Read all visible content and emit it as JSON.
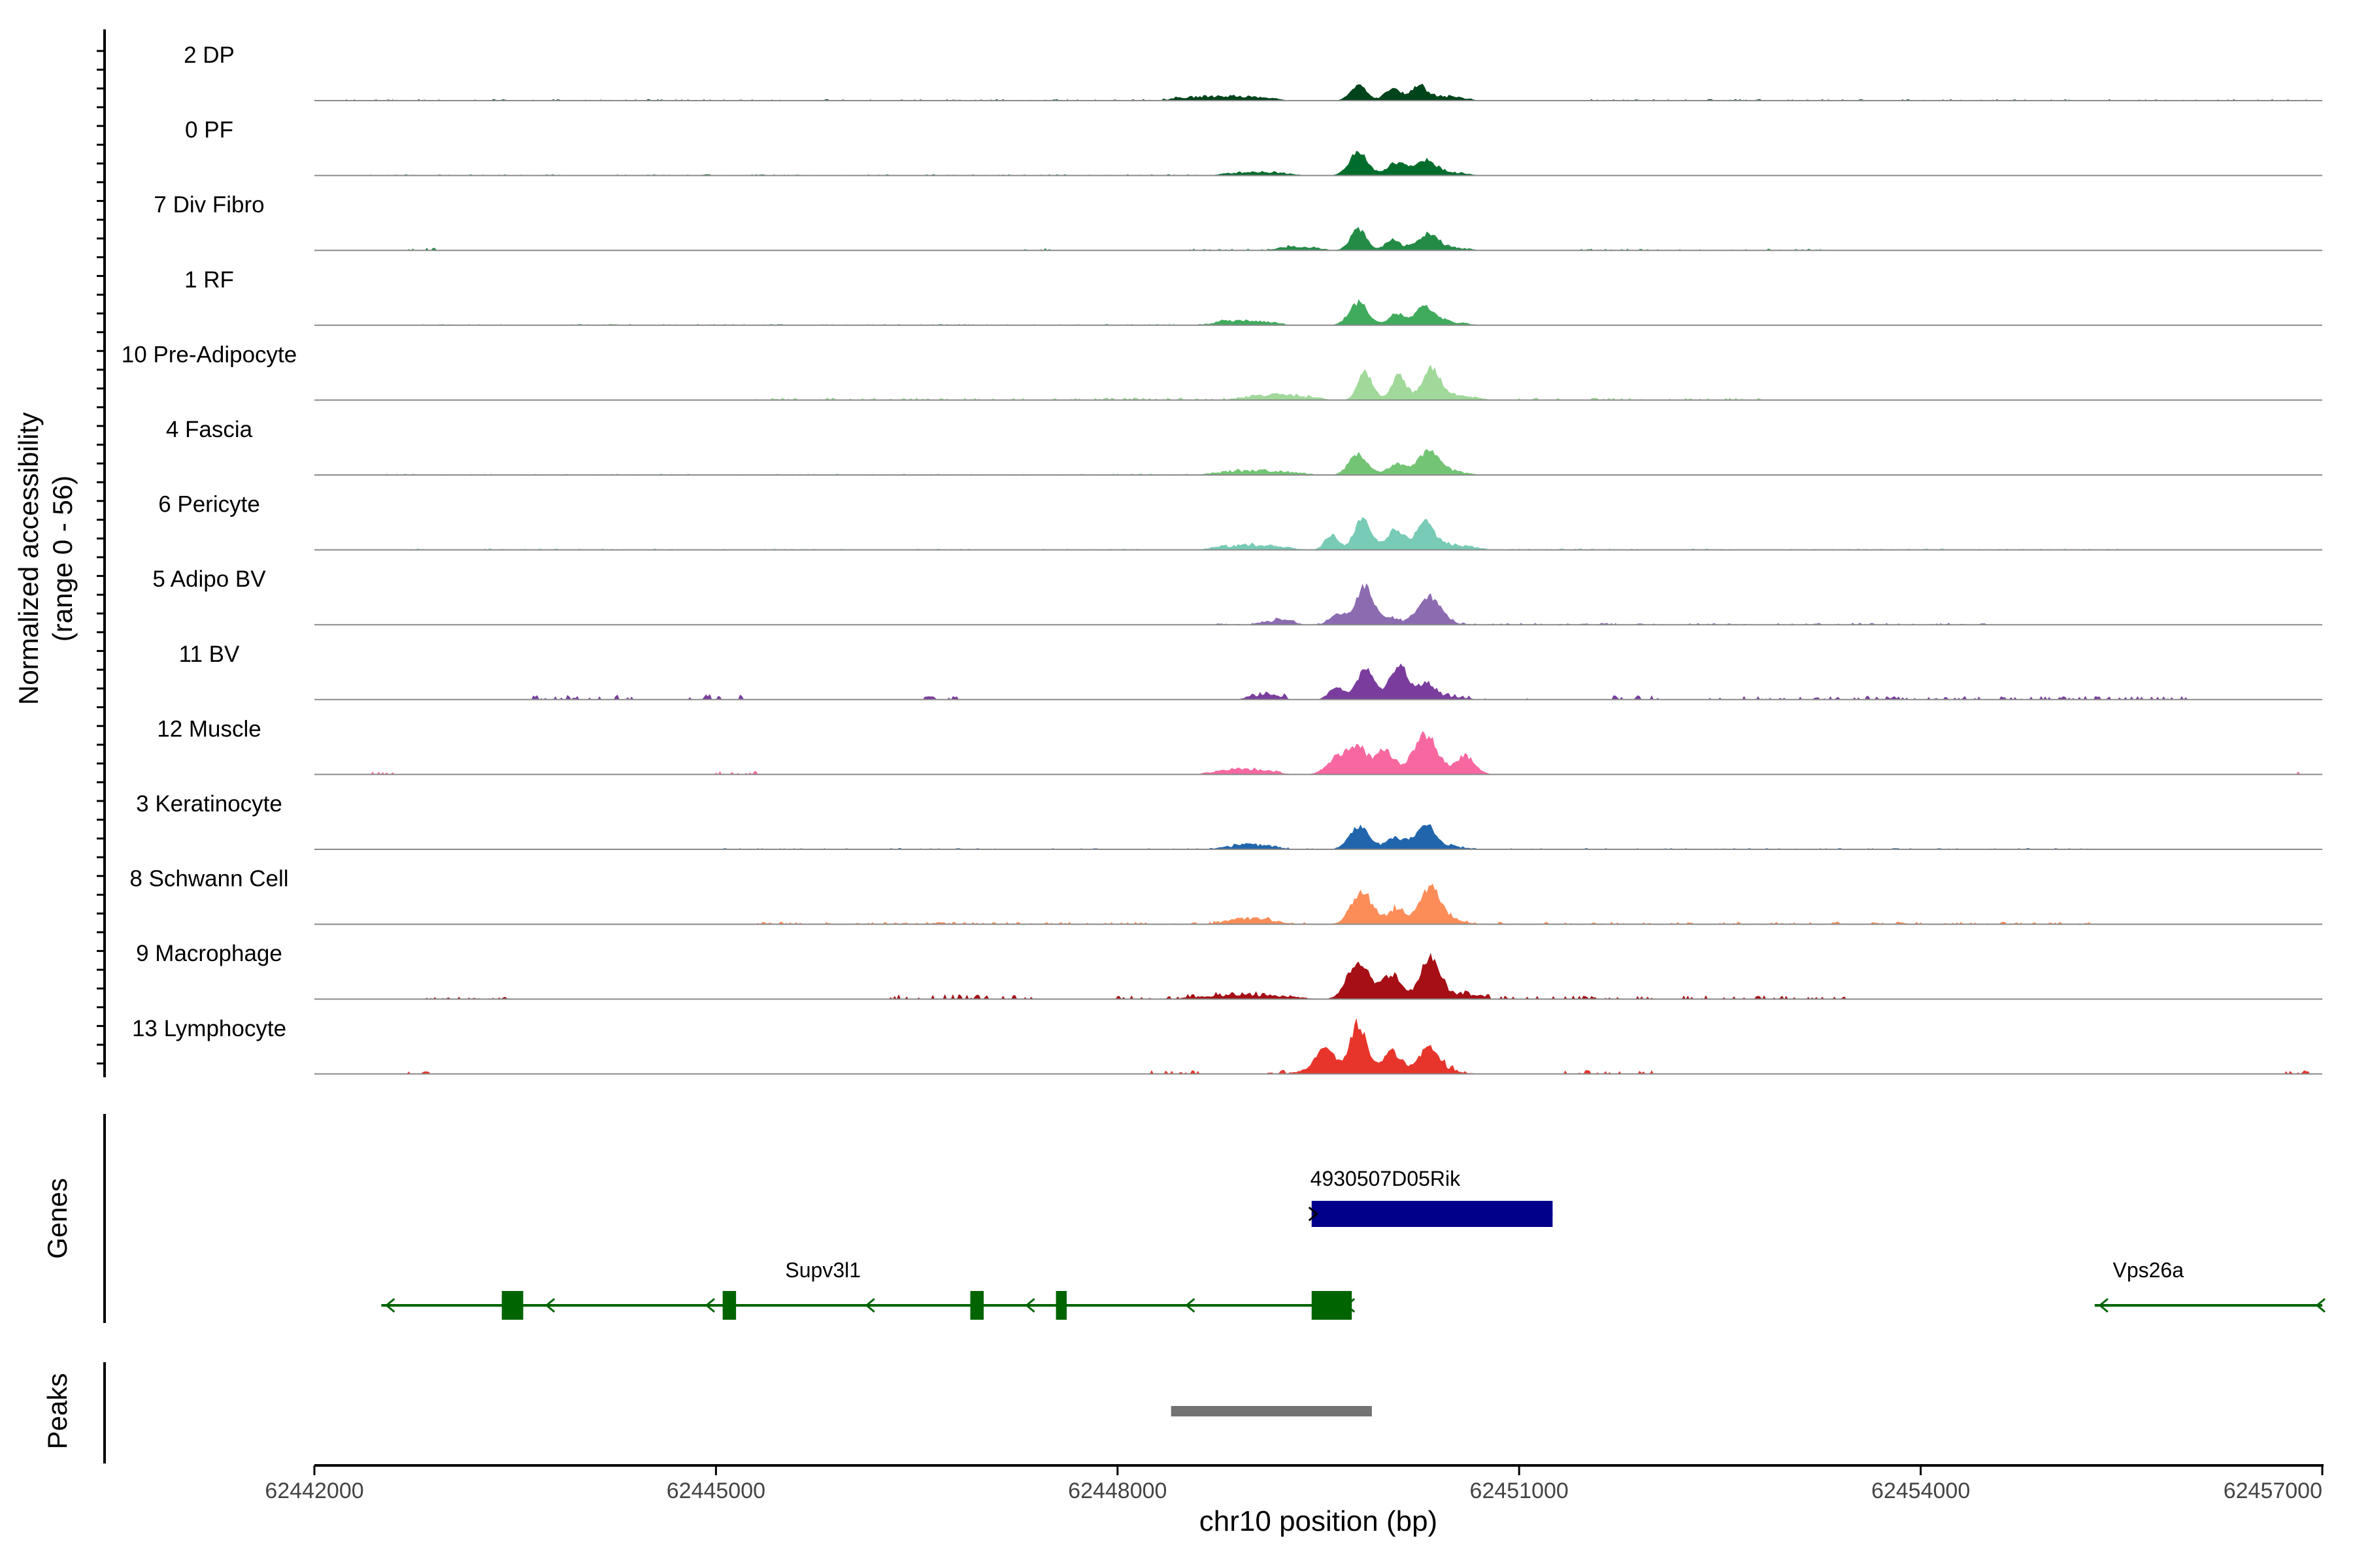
{
  "chart_data": {
    "type": "area",
    "subtype": "genome-coverage-plot",
    "chromosome": "chr10",
    "xlim": [
      62442000,
      62457000
    ],
    "xlabel": "chr10 position (bp)",
    "x_ticks": [
      62442000,
      62445000,
      62448000,
      62451000,
      62454000,
      62457000
    ],
    "x_tick_labels": [
      "62442000",
      "62445000",
      "62448000",
      "62451000",
      "62454000",
      "62457000"
    ],
    "ylabel_line1": "Normalized accessibility",
    "ylabel_line2": "(range 0 - 56)",
    "y_range": [
      0,
      56
    ],
    "track_labels": {
      "genes": "Genes",
      "peaks": "Peaks"
    },
    "series": [
      {
        "name": "2 DP",
        "color": "#00441b",
        "bg": [
          [
            62442200,
            62448500,
            1.2
          ],
          [
            62451500,
            62457000,
            1.2
          ]
        ],
        "clusters": [
          [
            62448300,
            62449300,
            5
          ],
          [
            62449900,
            62450700,
            6
          ]
        ],
        "peaks": [
          [
            62449800,
            15,
            60
          ],
          [
            62450050,
            8,
            50
          ],
          [
            62450250,
            10,
            50
          ]
        ]
      },
      {
        "name": "0 PF",
        "color": "#006d2c",
        "bg": [
          [
            62442400,
            62448600,
            1
          ]
        ],
        "clusters": [
          [
            62448700,
            62449400,
            4
          ],
          [
            62449900,
            62450700,
            5
          ]
        ],
        "peaks": [
          [
            62449800,
            22,
            70
          ],
          [
            62450080,
            9,
            60
          ],
          [
            62450300,
            11,
            70
          ]
        ]
      },
      {
        "name": "7 Div Fibro",
        "color": "#238b45",
        "bg": [
          [
            62442700,
            62442900,
            2
          ],
          [
            62447300,
            62447500,
            3
          ],
          [
            62448500,
            62449300,
            1.5
          ],
          [
            62451400,
            62453300,
            1.5
          ]
        ],
        "clusters": [
          [
            62449100,
            62449600,
            4
          ],
          [
            62449900,
            62450700,
            5
          ]
        ],
        "peaks": [
          [
            62449800,
            20,
            60
          ],
          [
            62450050,
            8,
            45
          ],
          [
            62450330,
            12,
            60
          ]
        ]
      },
      {
        "name": "1 RF",
        "color": "#41ab5d",
        "bg": [
          [
            62442700,
            62449000,
            1
          ]
        ],
        "clusters": [
          [
            62448600,
            62449300,
            5
          ],
          [
            62449900,
            62450700,
            5
          ]
        ],
        "peaks": [
          [
            62449800,
            22,
            70
          ],
          [
            62450080,
            8,
            50
          ],
          [
            62450300,
            13,
            70
          ]
        ]
      },
      {
        "name": "10 Pre-Adipocyte",
        "color": "#a1d99b",
        "bg": [
          [
            62445300,
            62448800,
            2
          ],
          [
            62451000,
            62452800,
            2
          ]
        ],
        "clusters": [
          [
            62448800,
            62449600,
            6
          ],
          [
            62449900,
            62450800,
            7
          ]
        ],
        "peaks": [
          [
            62449850,
            26,
            55
          ],
          [
            62450100,
            20,
            45
          ],
          [
            62450350,
            24,
            60
          ]
        ]
      },
      {
        "name": "4 Fascia",
        "color": "#74c476",
        "bg": [
          [
            62442500,
            62449000,
            1
          ]
        ],
        "clusters": [
          [
            62448600,
            62449500,
            5
          ],
          [
            62449900,
            62450700,
            6
          ]
        ],
        "peaks": [
          [
            62449800,
            20,
            70
          ],
          [
            62450080,
            7,
            50
          ],
          [
            62450330,
            17,
            75
          ]
        ]
      },
      {
        "name": "6 Pericyte",
        "color": "#78cbb6",
        "bg": [
          [
            62442700,
            62455500,
            1
          ]
        ],
        "clusters": [
          [
            62448600,
            62449400,
            5
          ],
          [
            62449800,
            62450800,
            7
          ]
        ],
        "peaks": [
          [
            62449600,
            14,
            50
          ],
          [
            62449830,
            30,
            60
          ],
          [
            62450080,
            14,
            55
          ],
          [
            62450300,
            20,
            60
          ]
        ]
      },
      {
        "name": "5 Adipo BV",
        "color": "#8c6bb1",
        "bg": [
          [
            62448600,
            62454500,
            1.5
          ]
        ],
        "clusters": [
          [
            62449000,
            62449400,
            5
          ]
        ],
        "peaks": [
          [
            62449650,
            10,
            60
          ],
          [
            62449850,
            34,
            70
          ],
          [
            62450050,
            6,
            50
          ],
          [
            62450330,
            26,
            90
          ]
        ]
      },
      {
        "name": "11 BV",
        "color": "#7a3d9e",
        "bg": [
          [
            62443600,
            62444400,
            4
          ],
          [
            62444800,
            62445200,
            5
          ],
          [
            62446500,
            62446800,
            3
          ],
          [
            62449000,
            62449400,
            4
          ],
          [
            62450300,
            62451100,
            3
          ],
          [
            62451700,
            62452100,
            4
          ],
          [
            62452400,
            62456000,
            3
          ]
        ],
        "clusters": [
          [
            62448900,
            62449300,
            5
          ],
          [
            62449500,
            62450700,
            6
          ]
        ],
        "peaks": [
          [
            62449630,
            10,
            50
          ],
          [
            62449850,
            24,
            60
          ],
          [
            62450100,
            28,
            60
          ],
          [
            62450300,
            12,
            55
          ]
        ]
      },
      {
        "name": "12 Muscle",
        "color": "#f768a1",
        "bg": [
          [
            62442400,
            62442600,
            3
          ],
          [
            62445000,
            62445300,
            3
          ],
          [
            62456800,
            62457000,
            3
          ]
        ],
        "clusters": [
          [
            62448600,
            62449300,
            6
          ],
          [
            62449700,
            62450800,
            7
          ]
        ],
        "peaks": [
          [
            62449650,
            17,
            80
          ],
          [
            62449800,
            22,
            70
          ],
          [
            62450000,
            18,
            60
          ],
          [
            62450300,
            32,
            80
          ],
          [
            62450600,
            15,
            60
          ]
        ]
      },
      {
        "name": "3 Keratinocyte",
        "color": "#2166ac",
        "bg": [
          [
            62445000,
            62455300,
            1
          ]
        ],
        "clusters": [
          [
            62448700,
            62449300,
            5
          ],
          [
            62449800,
            62450700,
            5
          ]
        ],
        "peaks": [
          [
            62449800,
            22,
            70
          ],
          [
            62450080,
            8,
            50
          ],
          [
            62450300,
            18,
            70
          ]
        ]
      },
      {
        "name": "8 Schwann Cell",
        "color": "#fc8d59",
        "bg": [
          [
            62445300,
            62455300,
            2
          ]
        ],
        "clusters": [
          [
            62448700,
            62449300,
            6
          ],
          [
            62449800,
            62450700,
            6
          ]
        ],
        "peaks": [
          [
            62449820,
            30,
            75
          ],
          [
            62450080,
            10,
            50
          ],
          [
            62450340,
            28,
            80
          ]
        ]
      },
      {
        "name": "9 Macrophage",
        "color": "#a50f15",
        "bg": [
          [
            62442800,
            62443500,
            2
          ],
          [
            62446300,
            62447400,
            4
          ],
          [
            62448000,
            62449300,
            3
          ],
          [
            62450300,
            62453500,
            3
          ]
        ],
        "clusters": [
          [
            62448400,
            62449500,
            4
          ],
          [
            62450300,
            62450800,
            6
          ]
        ],
        "peaks": [
          [
            62449800,
            38,
            80
          ],
          [
            62450050,
            24,
            70
          ],
          [
            62450330,
            38,
            70
          ]
        ]
      },
      {
        "name": "13 Lymphocyte",
        "color": "#e8352b",
        "bg": [
          [
            62442700,
            62442900,
            5
          ],
          [
            62448200,
            62448600,
            3
          ],
          [
            62449100,
            62449300,
            3
          ],
          [
            62450400,
            62450700,
            4
          ],
          [
            62451300,
            62452100,
            3
          ],
          [
            62456700,
            62456900,
            3
          ]
        ],
        "clusters": [
          [
            62449200,
            62450700,
            6
          ]
        ],
        "peaks": [
          [
            62449550,
            22,
            70
          ],
          [
            62449800,
            44,
            60
          ],
          [
            62450050,
            16,
            60
          ],
          [
            62450330,
            22,
            70
          ]
        ]
      }
    ],
    "genes": [
      {
        "name": "4930507D05Rik",
        "color": "#00008b",
        "strand": "+",
        "start": 62449450,
        "end": 62451250,
        "exons": [
          [
            62449450,
            62451250
          ]
        ],
        "label_pos": 62450000
      },
      {
        "name": "Supv3l1",
        "color": "#006400",
        "strand": "-",
        "start": 62442500,
        "end": 62449750,
        "exons": [
          [
            62443400,
            62443560
          ],
          [
            62445050,
            62445150
          ],
          [
            62446900,
            62447000
          ],
          [
            62447540,
            62447620
          ],
          [
            62449450,
            62449750
          ]
        ],
        "label_pos": 62445800
      },
      {
        "name": "Vps26a",
        "color": "#006400",
        "strand": "-",
        "start": 62455300,
        "end": 62457000,
        "exons": [],
        "label_pos": 62455700
      }
    ],
    "peaks_track": [
      {
        "start": 62448400,
        "end": 62449900,
        "color": "#737373"
      }
    ]
  }
}
